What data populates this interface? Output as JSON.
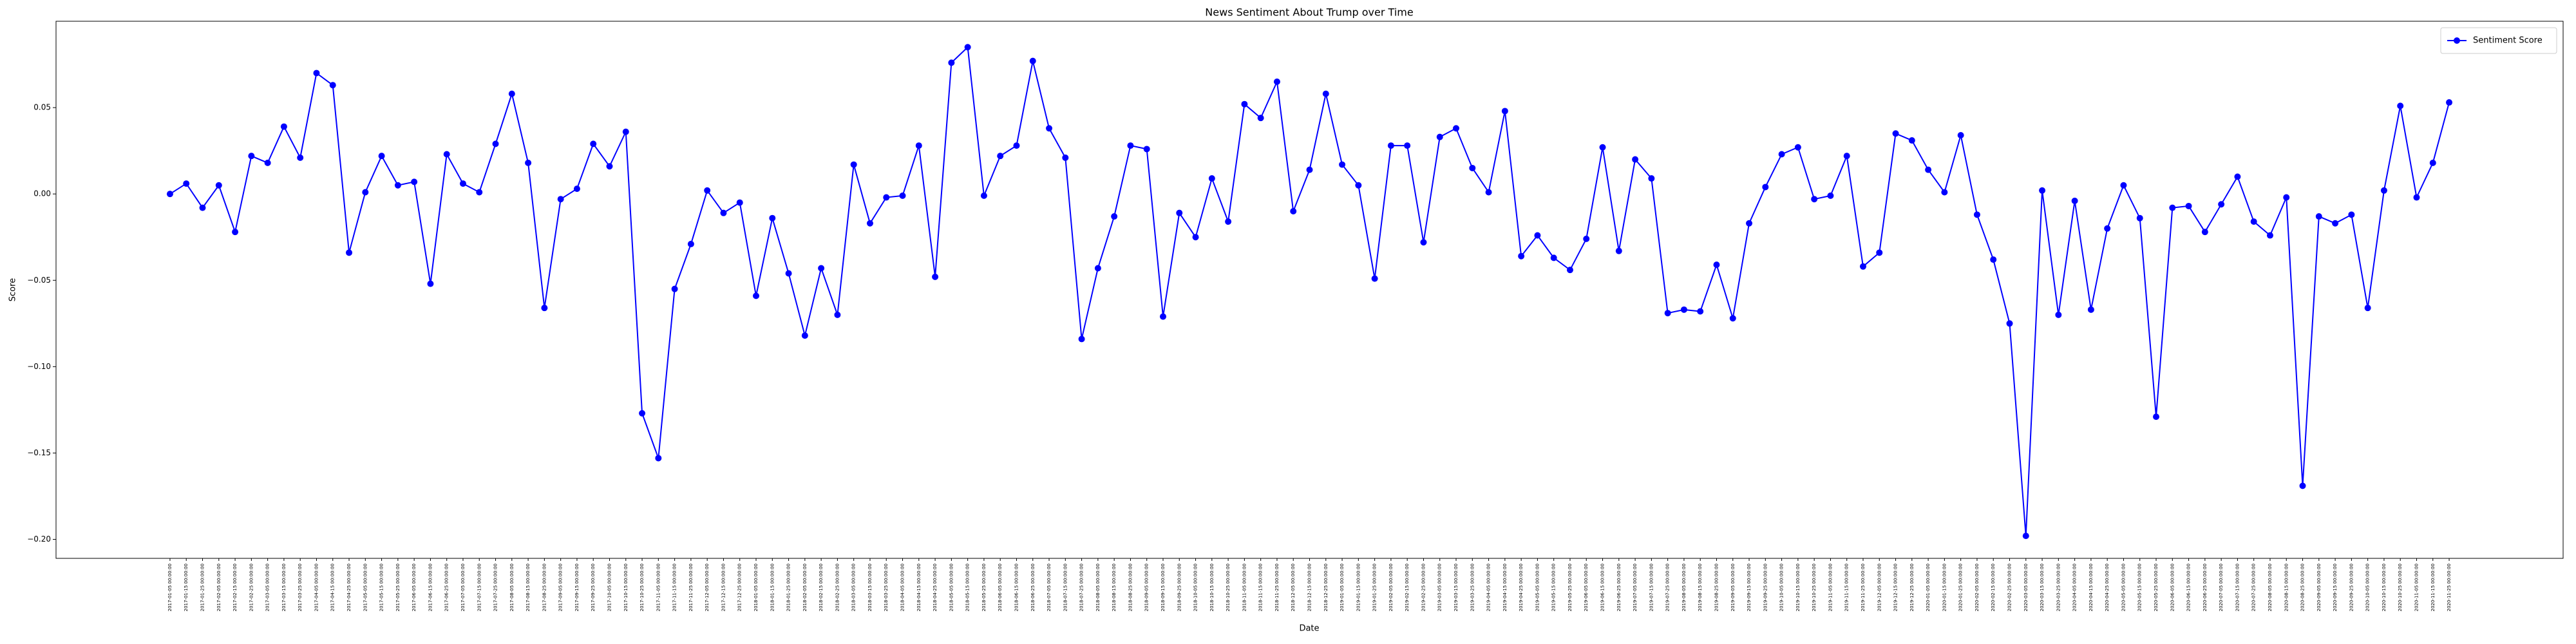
{
  "chart_data": {
    "type": "line",
    "title": "News Sentiment About Trump over Time",
    "x_label": "Date",
    "y_label": "Score",
    "categories": [
      "2017-01-05 00:00:00",
      "2017-01-15 00:00:00",
      "2017-01-25 00:00:00",
      "2017-02-05 00:00:00",
      "2017-02-15 00:00:00",
      "2017-02-25 00:00:00",
      "2017-03-05 00:00:00",
      "2017-03-15 00:00:00",
      "2017-03-25 00:00:00",
      "2017-04-05 00:00:00",
      "2017-04-15 00:00:00",
      "2017-04-25 00:00:00",
      "2017-05-05 00:00:00",
      "2017-05-15 00:00:00",
      "2017-05-25 00:00:00",
      "2017-06-05 00:00:00",
      "2017-06-15 00:00:00",
      "2017-06-25 00:00:00",
      "2017-07-05 00:00:00",
      "2017-07-15 00:00:00",
      "2017-07-25 00:00:00",
      "2017-08-05 00:00:00",
      "2017-08-15 00:00:00",
      "2017-08-25 00:00:00",
      "2017-09-05 00:00:00",
      "2017-09-15 00:00:00",
      "2017-09-25 00:00:00",
      "2017-10-05 00:00:00",
      "2017-10-15 00:00:00",
      "2017-10-25 00:00:00",
      "2017-11-05 00:00:00",
      "2017-11-15 00:00:00",
      "2017-11-25 00:00:00",
      "2017-12-05 00:00:00",
      "2017-12-15 00:00:00",
      "2017-12-25 00:00:00",
      "2018-01-05 00:00:00",
      "2018-01-15 00:00:00",
      "2018-01-25 00:00:00",
      "2018-02-05 00:00:00",
      "2018-02-15 00:00:00",
      "2018-02-25 00:00:00",
      "2018-03-05 00:00:00",
      "2018-03-15 00:00:00",
      "2018-03-25 00:00:00",
      "2018-04-05 00:00:00",
      "2018-04-15 00:00:00",
      "2018-04-25 00:00:00",
      "2018-05-05 00:00:00",
      "2018-05-15 00:00:00",
      "2018-05-25 00:00:00",
      "2018-06-05 00:00:00",
      "2018-06-15 00:00:00",
      "2018-06-25 00:00:00",
      "2018-07-05 00:00:00",
      "2018-07-15 00:00:00",
      "2018-07-25 00:00:00",
      "2018-08-05 00:00:00",
      "2018-08-15 00:00:00",
      "2018-08-25 00:00:00",
      "2018-09-05 00:00:00",
      "2018-09-15 00:00:00",
      "2018-09-25 00:00:00",
      "2018-10-05 00:00:00",
      "2018-10-15 00:00:00",
      "2018-10-25 00:00:00",
      "2018-11-05 00:00:00",
      "2018-11-15 00:00:00",
      "2018-11-25 00:00:00",
      "2018-12-05 00:00:00",
      "2018-12-15 00:00:00",
      "2018-12-25 00:00:00",
      "2019-01-05 00:00:00",
      "2019-01-15 00:00:00",
      "2019-01-25 00:00:00",
      "2019-02-05 00:00:00",
      "2019-02-15 00:00:00",
      "2019-02-25 00:00:00",
      "2019-03-05 00:00:00",
      "2019-03-15 00:00:00",
      "2019-03-25 00:00:00",
      "2019-04-05 00:00:00",
      "2019-04-15 00:00:00",
      "2019-04-25 00:00:00",
      "2019-05-05 00:00:00",
      "2019-05-15 00:00:00",
      "2019-05-25 00:00:00",
      "2019-06-05 00:00:00",
      "2019-06-15 00:00:00",
      "2019-06-25 00:00:00",
      "2019-07-05 00:00:00",
      "2019-07-15 00:00:00",
      "2019-07-25 00:00:00",
      "2019-08-05 00:00:00",
      "2019-08-15 00:00:00",
      "2019-08-25 00:00:00",
      "2019-09-05 00:00:00",
      "2019-09-15 00:00:00",
      "2019-09-25 00:00:00",
      "2019-10-05 00:00:00",
      "2019-10-15 00:00:00",
      "2019-10-25 00:00:00",
      "2019-11-05 00:00:00",
      "2019-11-15 00:00:00",
      "2019-11-25 00:00:00",
      "2019-12-05 00:00:00",
      "2019-12-15 00:00:00",
      "2019-12-25 00:00:00",
      "2020-01-05 00:00:00",
      "2020-01-15 00:00:00",
      "2020-01-25 00:00:00",
      "2020-02-05 00:00:00",
      "2020-02-15 00:00:00",
      "2020-02-25 00:00:00",
      "2020-03-05 00:00:00",
      "2020-03-15 00:00:00",
      "2020-03-25 00:00:00",
      "2020-04-05 00:00:00",
      "2020-04-15 00:00:00",
      "2020-04-25 00:00:00",
      "2020-05-05 00:00:00",
      "2020-05-15 00:00:00",
      "2020-05-25 00:00:00",
      "2020-06-05 00:00:00",
      "2020-06-15 00:00:00",
      "2020-06-25 00:00:00",
      "2020-07-05 00:00:00",
      "2020-07-15 00:00:00",
      "2020-07-25 00:00:00",
      "2020-08-05 00:00:00",
      "2020-08-15 00:00:00",
      "2020-08-25 00:00:00",
      "2020-09-05 00:00:00",
      "2020-09-15 00:00:00",
      "2020-09-25 00:00:00",
      "2020-10-05 00:00:00",
      "2020-10-15 00:00:00",
      "2020-10-25 00:00:00",
      "2020-11-05 00:00:00",
      "2020-11-15 00:00:00",
      "2020-11-25 00:00:00"
    ],
    "series": [
      {
        "name": "Sentiment Score",
        "color": "#0000ff",
        "values": [
          0,
          0.006,
          -0.008,
          0.005,
          -0.022,
          0.022,
          0.018,
          0.039,
          0.021,
          0.07,
          0.063,
          -0.034,
          0.001,
          0.022,
          0.005,
          0.007,
          -0.052,
          0.023,
          0.006,
          0.001,
          0.029,
          0.058,
          0.018,
          -0.066,
          -0.003,
          0.003,
          0.029,
          0.016,
          0.036,
          -0.127,
          -0.153,
          -0.055,
          -0.029,
          0.002,
          -0.011,
          -0.005,
          -0.059,
          -0.014,
          -0.046,
          -0.082,
          -0.043,
          -0.07,
          0.017,
          -0.017,
          -0.002,
          -0.001,
          0.028,
          -0.048,
          0.076,
          0.085,
          -0.001,
          0.022,
          0.028,
          0.077,
          0.038,
          0.021,
          -0.084,
          -0.043,
          -0.013,
          0.028,
          0.026,
          -0.071,
          -0.011,
          -0.025,
          0.009,
          -0.016,
          0.052,
          0.044,
          0.065,
          -0.01,
          0.014,
          0.058,
          0.017,
          0.005,
          -0.049,
          0.028,
          0.028,
          -0.028,
          0.033,
          0.038,
          0.015,
          0.001,
          0.048,
          -0.036,
          -0.024,
          -0.037,
          -0.044,
          -0.026,
          0.027,
          -0.033,
          0.02,
          0.009,
          -0.069,
          -0.067,
          -0.068,
          -0.041,
          -0.072,
          -0.017,
          0.004,
          0.023,
          0.027,
          -0.003,
          -0.001,
          0.022,
          -0.042,
          -0.034,
          0.035,
          0.031,
          0.014,
          0.001,
          0.034,
          -0.012,
          -0.038,
          -0.075,
          -0.198,
          0.002,
          -0.07,
          -0.004,
          -0.067,
          -0.02,
          0.005,
          -0.014,
          -0.129,
          -0.008,
          -0.007,
          -0.022,
          -0.006,
          0.01,
          -0.016,
          -0.024,
          -0.002,
          -0.169,
          -0.013,
          -0.017,
          -0.012,
          -0.066,
          0.002,
          0.051,
          -0.002,
          0.018,
          0.053
        ]
      }
    ],
    "ylim": [
      -0.211,
      0.1
    ],
    "yticks": [
      {
        "value": -0.2,
        "label": "−0.20"
      },
      {
        "value": -0.15,
        "label": "−0.15"
      },
      {
        "value": -0.1,
        "label": "−0.10"
      },
      {
        "value": -0.05,
        "label": "−0.05"
      },
      {
        "value": 0,
        "label": "0.00"
      },
      0.05
    ],
    "legend": "upper right"
  }
}
